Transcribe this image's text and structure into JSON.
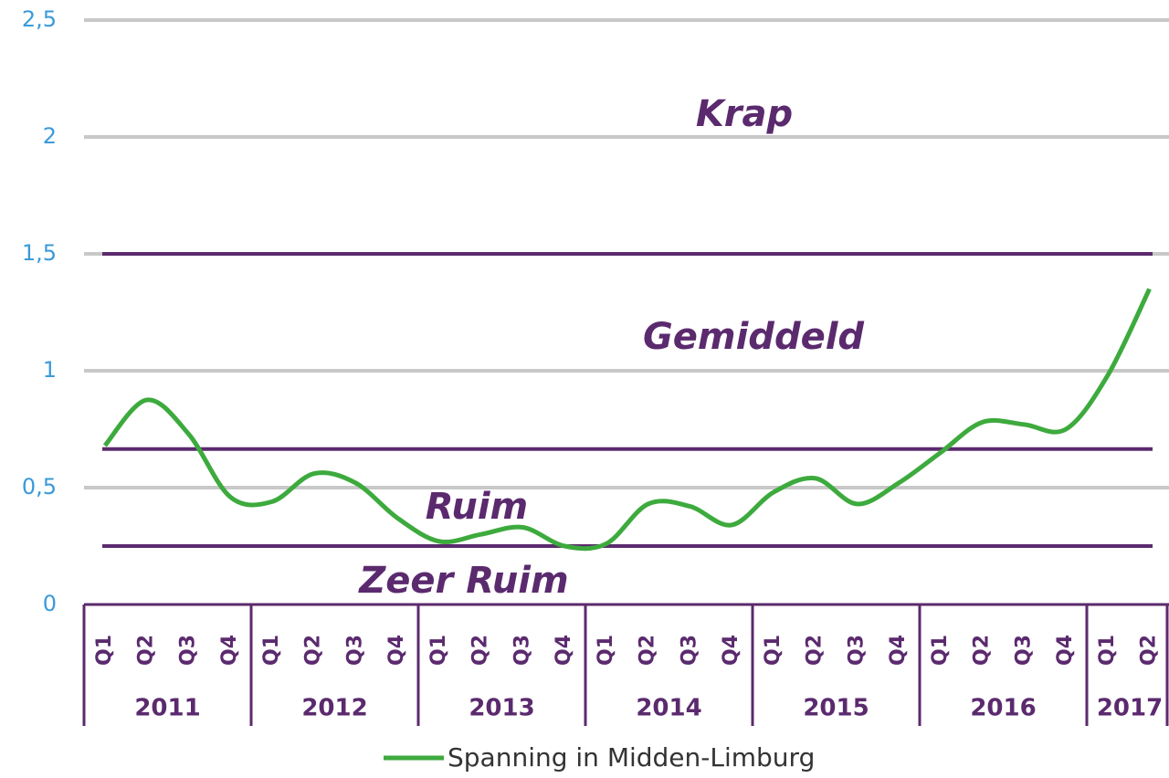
{
  "chart_data": {
    "type": "line",
    "ylim": [
      0,
      2.5
    ],
    "yticks": [
      0,
      {
        "value": 0.5,
        "label": "0,5"
      },
      1,
      {
        "value": 1.5,
        "label": "1,5"
      },
      2,
      {
        "value": 2.5,
        "label": "2,5"
      }
    ],
    "grid": true,
    "category_groups": [
      {
        "label": "2011",
        "categories": [
          "Q1",
          "Q2",
          "Q3",
          "Q4"
        ]
      },
      {
        "label": "2012",
        "categories": [
          "Q1",
          "Q2",
          "Q3",
          "Q4"
        ]
      },
      {
        "label": "2013",
        "categories": [
          "Q1",
          "Q2",
          "Q3",
          "Q4"
        ]
      },
      {
        "label": "2014",
        "categories": [
          "Q1",
          "Q2",
          "Q3",
          "Q4"
        ]
      },
      {
        "label": "2015",
        "categories": [
          "Q1",
          "Q2",
          "Q3",
          "Q4"
        ]
      },
      {
        "label": "2016",
        "categories": [
          "Q1",
          "Q2",
          "Q3",
          "Q4"
        ]
      },
      {
        "label": "2017",
        "categories": [
          "Q1",
          "Q2"
        ]
      }
    ],
    "series": [
      {
        "name": "Spanning in Midden-Limburg",
        "color": "#3daa3d",
        "values": [
          0.68,
          0.875,
          0.73,
          0.46,
          0.44,
          0.56,
          0.52,
          0.37,
          0.27,
          0.3,
          0.33,
          0.25,
          0.26,
          0.43,
          0.42,
          0.34,
          0.48,
          0.54,
          0.43,
          0.52,
          0.65,
          0.78,
          0.77,
          0.75,
          0.98,
          1.35
        ]
      }
    ],
    "thresholds": [
      1.5,
      0.665,
      0.25
    ],
    "threshold_color": "#5b2a6e",
    "annotations": [
      "Krap",
      "Gemiddeld",
      "Ruim",
      "Zeer Ruim"
    ]
  }
}
